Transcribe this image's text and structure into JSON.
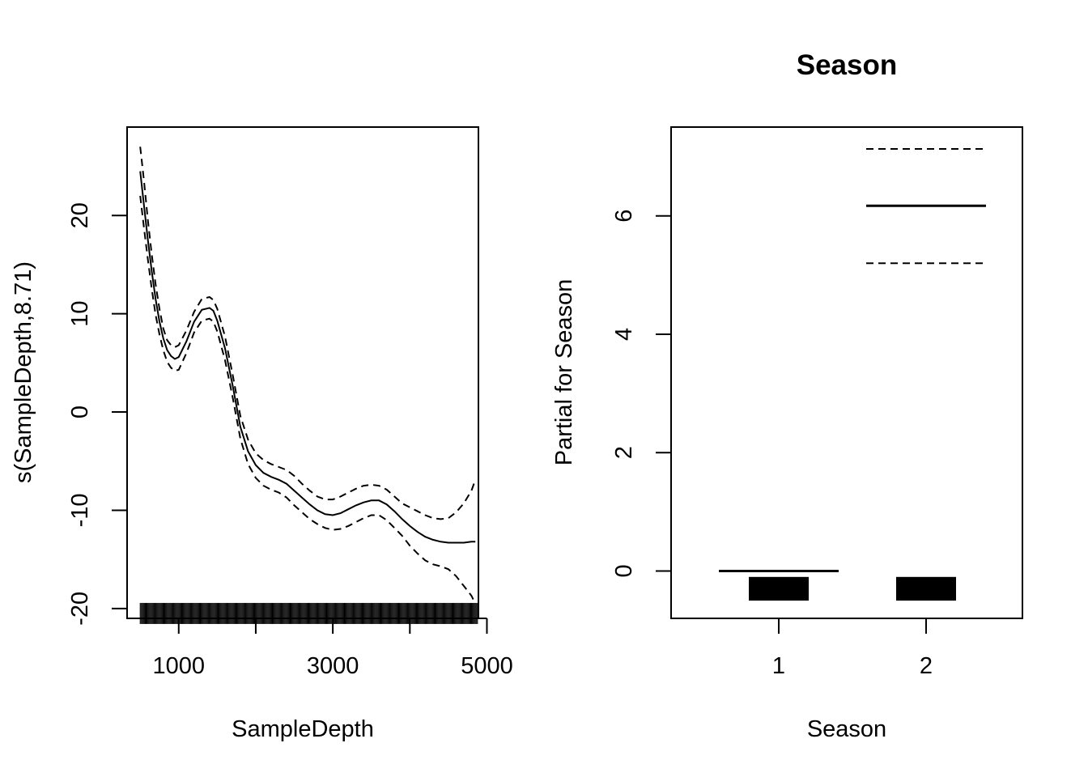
{
  "chart_data": [
    {
      "type": "line",
      "title": "",
      "xlabel": "SampleDepth",
      "ylabel": "s(SampleDepth,8.71)",
      "xlim": [
        330,
        4890
      ],
      "ylim": [
        -21,
        29
      ],
      "xticks": [
        1000,
        2000,
        3000,
        4000,
        5000
      ],
      "xtick_labels": [
        "1000",
        "",
        "3000",
        "",
        "5000"
      ],
      "yticks": [
        -20,
        -10,
        0,
        10,
        20
      ],
      "ytick_labels": [
        "-20",
        "-10",
        "0",
        "10",
        "20"
      ],
      "grid": false,
      "series": [
        {
          "role": "fit",
          "style": "solid",
          "x": [
            500,
            550,
            600,
            650,
            700,
            750,
            800,
            850,
            900,
            950,
            1000,
            1100,
            1200,
            1300,
            1400,
            1450,
            1500,
            1600,
            1700,
            1800,
            1900,
            2000,
            2100,
            2200,
            2300,
            2400,
            2500,
            2600,
            2700,
            2800,
            2900,
            3000,
            3100,
            3200,
            3300,
            3400,
            3500,
            3600,
            3700,
            3800,
            3900,
            4000,
            4100,
            4200,
            4300,
            4400,
            4500,
            4600,
            4700,
            4800,
            4850
          ],
          "y": [
            24.5,
            21.0,
            17.5,
            14.3,
            11.5,
            9.2,
            7.5,
            6.3,
            5.7,
            5.4,
            5.6,
            7.2,
            9.2,
            10.4,
            10.6,
            10.3,
            9.3,
            6.5,
            2.7,
            -1.5,
            -4.0,
            -5.4,
            -6.2,
            -6.6,
            -6.9,
            -7.3,
            -8.0,
            -8.7,
            -9.4,
            -10.0,
            -10.4,
            -10.5,
            -10.3,
            -9.9,
            -9.5,
            -9.2,
            -9.0,
            -9.0,
            -9.4,
            -10.1,
            -10.9,
            -11.6,
            -12.2,
            -12.7,
            -13.0,
            -13.2,
            -13.3,
            -13.3,
            -13.3,
            -13.2,
            -13.2
          ]
        },
        {
          "role": "upper",
          "style": "dashed",
          "x": [
            500,
            550,
            600,
            650,
            700,
            750,
            800,
            850,
            900,
            950,
            1000,
            1100,
            1200,
            1300,
            1400,
            1450,
            1500,
            1600,
            1700,
            1800,
            1900,
            2000,
            2100,
            2200,
            2300,
            2400,
            2500,
            2600,
            2700,
            2800,
            2900,
            3000,
            3100,
            3200,
            3300,
            3400,
            3500,
            3600,
            3700,
            3800,
            3900,
            4000,
            4100,
            4200,
            4300,
            4400,
            4500,
            4600,
            4700,
            4800,
            4850
          ],
          "y": [
            27.0,
            23.5,
            19.5,
            16.0,
            13.0,
            10.5,
            8.5,
            7.3,
            6.8,
            6.6,
            6.8,
            8.3,
            10.2,
            11.5,
            11.7,
            11.4,
            10.5,
            7.7,
            3.8,
            -0.4,
            -2.8,
            -4.2,
            -4.9,
            -5.3,
            -5.6,
            -5.9,
            -6.5,
            -7.3,
            -8.0,
            -8.6,
            -8.9,
            -8.9,
            -8.6,
            -8.2,
            -7.8,
            -7.5,
            -7.4,
            -7.5,
            -7.9,
            -8.6,
            -9.3,
            -9.7,
            -10.1,
            -10.5,
            -10.8,
            -10.9,
            -10.8,
            -10.2,
            -9.3,
            -8.0,
            -6.9
          ]
        },
        {
          "role": "lower",
          "style": "dashed",
          "x": [
            500,
            550,
            600,
            650,
            700,
            750,
            800,
            850,
            900,
            950,
            1000,
            1100,
            1200,
            1300,
            1400,
            1450,
            1500,
            1600,
            1700,
            1800,
            1900,
            2000,
            2100,
            2200,
            2300,
            2400,
            2500,
            2600,
            2700,
            2800,
            2900,
            3000,
            3100,
            3200,
            3300,
            3400,
            3500,
            3600,
            3700,
            3800,
            3900,
            4000,
            4100,
            4200,
            4300,
            4400,
            4500,
            4600,
            4700,
            4800,
            4850
          ],
          "y": [
            22.0,
            18.7,
            15.5,
            12.5,
            9.9,
            7.9,
            6.3,
            5.1,
            4.5,
            4.2,
            4.3,
            6.0,
            8.1,
            9.3,
            9.5,
            9.2,
            8.2,
            5.3,
            1.5,
            -2.7,
            -5.3,
            -6.7,
            -7.5,
            -7.9,
            -8.2,
            -8.7,
            -9.5,
            -10.2,
            -10.9,
            -11.4,
            -11.8,
            -12.0,
            -11.9,
            -11.6,
            -11.2,
            -10.8,
            -10.5,
            -10.5,
            -11.0,
            -11.8,
            -12.6,
            -13.6,
            -14.4,
            -15.1,
            -15.5,
            -15.7,
            -16.0,
            -16.7,
            -17.7,
            -18.7,
            -19.5
          ]
        }
      ],
      "rug": {
        "ranges": [
          [
            500,
            4880
          ]
        ],
        "density": "dense",
        "y": -20.5
      }
    },
    {
      "type": "bar",
      "title": "Season",
      "xlabel": "Season",
      "ylabel": "Partial for Season",
      "categories": [
        "1",
        "2"
      ],
      "ylim": [
        -0.8,
        7.5
      ],
      "yticks": [
        0,
        2,
        4,
        6
      ],
      "ytick_labels": [
        "0",
        "2",
        "4",
        "6"
      ],
      "grid": false,
      "estimates": [
        0.0,
        6.17
      ],
      "upper": [
        0.0,
        7.13
      ],
      "lower": [
        0.0,
        5.2
      ],
      "rug_band": [
        -0.5,
        -0.1
      ]
    }
  ]
}
